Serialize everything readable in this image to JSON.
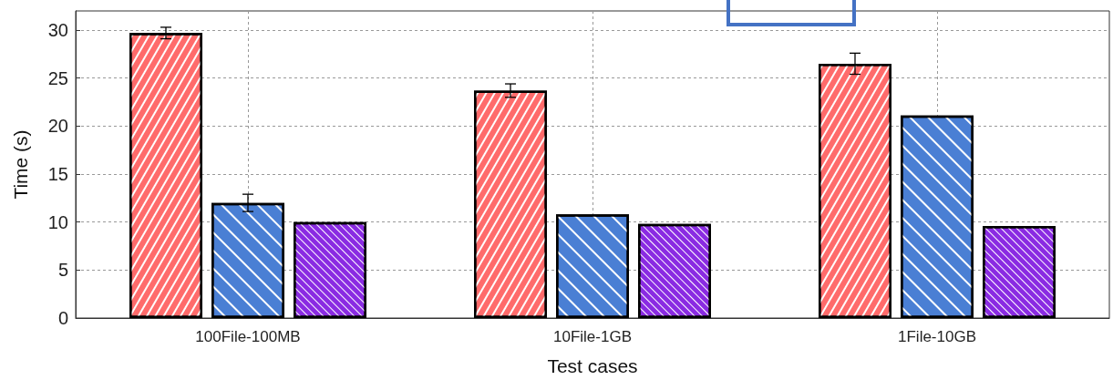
{
  "chart_data": {
    "type": "bar",
    "xlabel": "Test cases",
    "ylabel": "Time (s)",
    "categories": [
      "100File-100MB",
      "10File-1GB",
      "1File-10GB"
    ],
    "series": [
      {
        "color": "#ff6b6b",
        "values": [
          29.7,
          23.7,
          26.5
        ],
        "errors": [
          0.6,
          0.7,
          1.1
        ]
      },
      {
        "color": "#4a7fd4",
        "values": [
          12.0,
          10.8,
          21.1
        ],
        "errors": [
          0.9,
          null,
          null
        ]
      },
      {
        "color": "#8a2be2",
        "values": [
          10.0,
          9.8,
          9.6
        ]
      }
    ],
    "ylim": [
      0,
      32
    ],
    "yticks": [
      0,
      5,
      10,
      15,
      20,
      25,
      30
    ],
    "grid": true
  }
}
